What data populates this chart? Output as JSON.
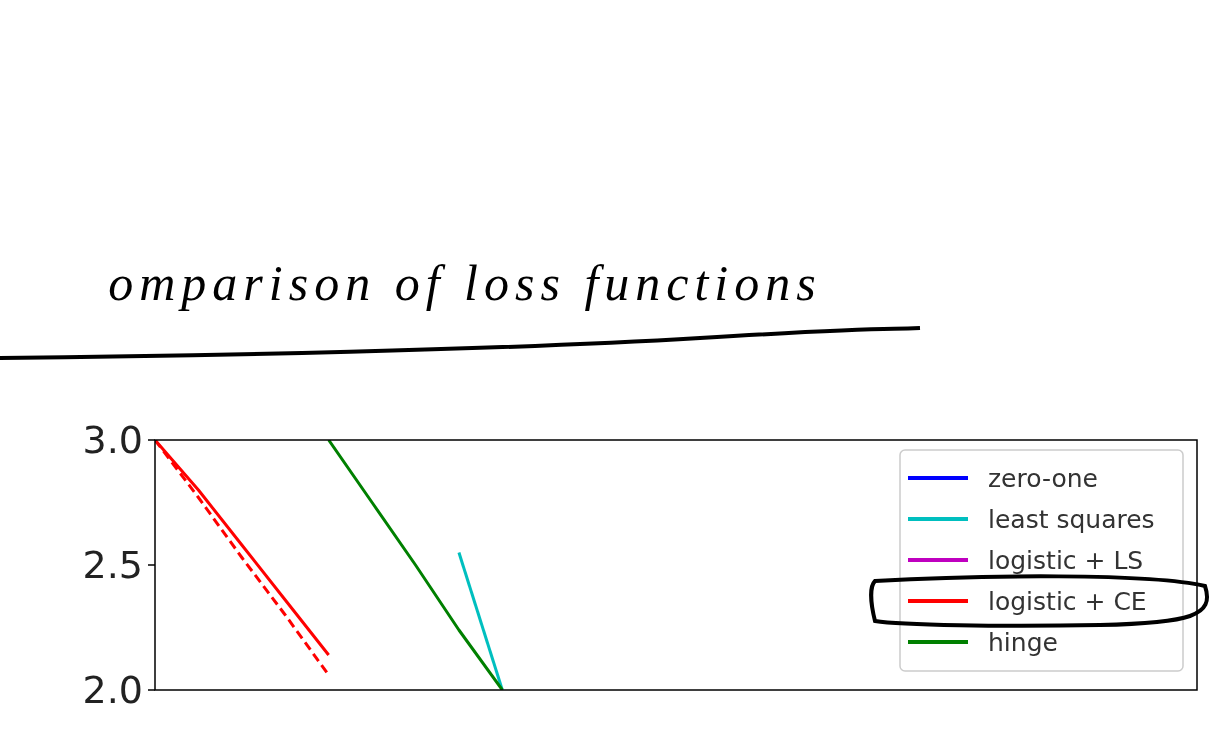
{
  "chart_data": {
    "type": "line",
    "title": "omparison of loss functions",
    "categories": [
      null,
      null,
      null,
      null,
      null,
      null,
      null,
      null,
      null
    ],
    "series": [
      {
        "name": "zero-one",
        "color": "#0000ff",
        "values": [
          null,
          null,
          null,
          null,
          null,
          null,
          null,
          null,
          null
        ]
      },
      {
        "name": "least squares",
        "color": "#00bfbf",
        "values": [
          null,
          null,
          null,
          null,
          null,
          null,
          null,
          2.55,
          2.0
        ]
      },
      {
        "name": "logistic + LS",
        "color": "#bf00bf",
        "values": [
          null,
          null,
          null,
          null,
          null,
          null,
          null,
          null,
          null
        ]
      },
      {
        "color": "#ff0000",
        "line_style": "dashed",
        "values": [
          3.0,
          2.77,
          2.53,
          2.3,
          2.06,
          null,
          null,
          null,
          null
        ]
      },
      {
        "name": "logistic + CE",
        "color": "#ff0000",
        "values": [
          3.0,
          2.8,
          2.58,
          2.36,
          2.14,
          null,
          null,
          null,
          null
        ]
      },
      {
        "name": "hinge",
        "color": "#008000",
        "values": [
          null,
          null,
          null,
          null,
          3.0,
          2.75,
          2.5,
          2.24,
          2.0
        ]
      }
    ],
    "ylim": [
      2.0,
      3.0
    ],
    "yticks": [
      {
        "value": 2.0,
        "label": "2.0"
      },
      {
        "value": 2.5,
        "label": "2.5"
      },
      {
        "value": 3.0,
        "label": "3.0"
      }
    ],
    "legend": "top right",
    "grid": false
  }
}
